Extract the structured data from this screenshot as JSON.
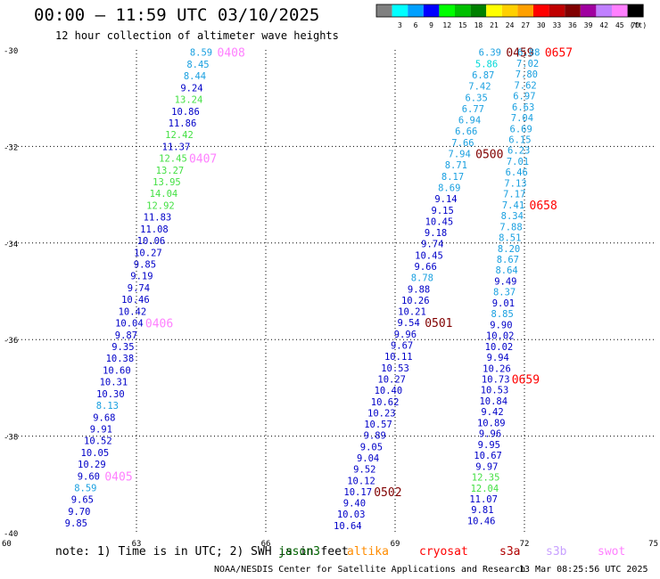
{
  "header": {
    "title": "00:00 – 11:59 UTC 03/10/2025",
    "subtitle": "12 hour collection of altimeter wave heights"
  },
  "footer": {
    "note": "note: 1) Time is in UTC; 2) SWH is in feet",
    "credit": "NOAA/NESDIS Center for Satellite Applications and Research",
    "timestamp": "13 Mar 08:25:56 UTC 2025",
    "satellites": [
      {
        "name": "jason3",
        "color": "#006400"
      },
      {
        "name": "altika",
        "color": "#ff8c00"
      },
      {
        "name": "cryosat",
        "color": "#ff0000"
      },
      {
        "name": "s3a",
        "color": "#b00000"
      },
      {
        "name": "s3b",
        "color": "#c8a0ff"
      },
      {
        "name": "swot",
        "color": "#ff80ff"
      }
    ]
  },
  "chart_data": {
    "type": "scatter",
    "xlim": [
      60,
      75
    ],
    "ylim": [
      -40,
      -30
    ],
    "x_ticks": [
      "60",
      "63",
      "66",
      "69",
      "72",
      "75"
    ],
    "y_ticks": [
      "-30",
      "-32",
      "-34",
      "-36",
      "-38",
      "-40"
    ],
    "grid": true,
    "legend": {
      "position": "top-right",
      "labels": [
        "3",
        "6",
        "9",
        "12",
        "15",
        "18",
        "21",
        "24",
        "27",
        "30",
        "33",
        "36",
        "39",
        "42",
        "45",
        "70"
      ],
      "unit": "(ft)",
      "colors": [
        "#808080",
        "#00ffff",
        "#00a0ff",
        "#0000ff",
        "#00ff00",
        "#00c000",
        "#008000",
        "#ffff00",
        "#ffd000",
        "#ffa000",
        "#ff0000",
        "#c00000",
        "#800000",
        "#a000a0",
        "#c080ff",
        "#ff80ff",
        "#000000"
      ]
    },
    "tracks": [
      {
        "name": "track-1",
        "x_start": 61.6,
        "x_end": 64.5,
        "lat_start": -39.8,
        "lat_end": -30.05,
        "values": [
          "9.85",
          "9.70",
          "9.65",
          "8.59",
          "9.60",
          "10.29",
          "10.05",
          "10.52",
          "9.91",
          "9.68",
          "8.13",
          "10.30",
          "10.31",
          "10.60",
          "10.38",
          "9.35",
          "9.87",
          "10.04",
          "10.42",
          "10.46",
          "9.74",
          "9.19",
          "9.85",
          "10.27",
          "10.06",
          "11.08",
          "11.83",
          "12.92",
          "14.04",
          "13.95",
          "13.27",
          "12.45",
          "11.37",
          "12.42",
          "11.86",
          "10.86",
          "13.24",
          "9.24",
          "8.44",
          "8.45",
          "8.59"
        ],
        "times": [
          {
            "label": "0405",
            "value_index": 4,
            "color": "#ff80ff"
          },
          {
            "label": "0406",
            "value_index": 17,
            "color": "#ff80ff"
          },
          {
            "label": "0407",
            "value_index": 31,
            "color": "#ff80ff"
          },
          {
            "label": "0408",
            "value_index": 40,
            "color": "#ff80ff"
          }
        ]
      },
      {
        "name": "track-2",
        "x_start": 67.9,
        "x_end": 71.2,
        "lat_start": -39.85,
        "lat_end": -30.05,
        "values": [
          "10.64",
          "10.03",
          "9.40",
          "10.17",
          "10.12",
          "9.52",
          "9.04",
          "9.05",
          "9.89",
          "10.57",
          "10.23",
          "10.62",
          "10.40",
          "10.27",
          "10.53",
          "10.11",
          "9.67",
          "9.96",
          "9.54",
          "10.21",
          "10.26",
          "9.88",
          "8.78",
          "9.66",
          "10.45",
          "9.74",
          "9.18",
          "10.45",
          "9.15",
          "9.14",
          "8.69",
          "8.17",
          "8.71",
          "7.94",
          "7.66",
          "6.66",
          "6.94",
          "6.77",
          "6.35",
          "7.42",
          "6.87",
          "5.86",
          "6.39"
        ],
        "times": [
          {
            "label": "0502",
            "value_index": 3,
            "color": "#800000"
          },
          {
            "label": "0501",
            "value_index": 18,
            "color": "#800000"
          },
          {
            "label": "0500",
            "value_index": 33,
            "color": "#800000"
          },
          {
            "label": "0459",
            "value_index": 42,
            "color": "#800000"
          }
        ]
      },
      {
        "name": "track-3",
        "x_start": 71.0,
        "x_end": 72.1,
        "lat_start": -39.75,
        "lat_end": -30.05,
        "values": [
          "10.46",
          "9.81",
          "11.07",
          "12.04",
          "12.35",
          "9.97",
          "10.67",
          "9.95",
          "9.96",
          "10.89",
          "9.42",
          "10.84",
          "10.53",
          "10.73",
          "10.26",
          "9.94",
          "10.02",
          "10.02",
          "9.90",
          "8.85",
          "9.01",
          "8.37",
          "9.49",
          "8.64",
          "8.67",
          "8.20",
          "8.51",
          "7.88",
          "8.34",
          "7.41",
          "7.17",
          "7.13",
          "6.46",
          "7.01",
          "6.23",
          "6.15",
          "6.69",
          "7.04",
          "6.63",
          "6.97",
          "7.62",
          "7.80",
          "7.02",
          "6.88"
        ],
        "times": [
          {
            "label": "0659",
            "value_index": 13,
            "color": "#ff0000"
          },
          {
            "label": "0658",
            "value_index": 29,
            "color": "#ff0000"
          },
          {
            "label": "0657",
            "value_index": 43,
            "color": "#ff0000"
          }
        ]
      }
    ]
  }
}
